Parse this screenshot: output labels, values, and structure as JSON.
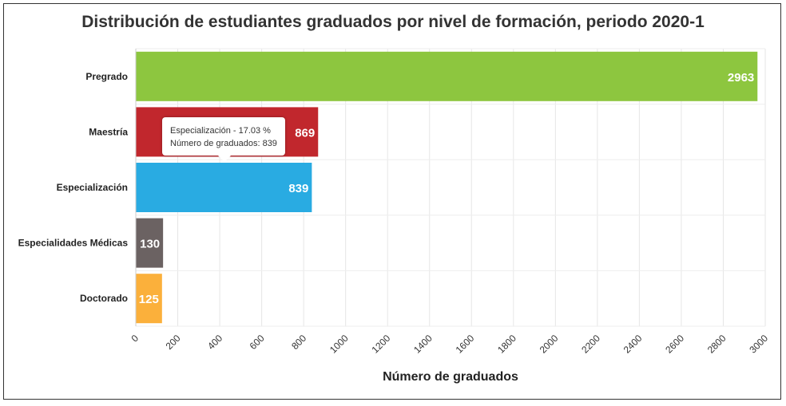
{
  "chart_data": {
    "type": "bar",
    "orientation": "horizontal",
    "title": "Distribución de estudiantes graduados por nivel de formación, periodo 2020-1",
    "xlabel": "Número de graduados",
    "ylabel": "",
    "categories": [
      "Pregrado",
      "Maestría",
      "Especialización",
      "Especialidades Médicas",
      "Doctorado"
    ],
    "values": [
      2963,
      869,
      839,
      130,
      125
    ],
    "colors": [
      "#8dc63f",
      "#c1272d",
      "#29abe2",
      "#6b6262",
      "#fbb03b"
    ],
    "xlim": [
      0,
      3000
    ],
    "xticks": [
      "0",
      "200",
      "400",
      "600",
      "800",
      "1000",
      "1200",
      "1400",
      "1600",
      "1800",
      "2000",
      "2200",
      "2400",
      "2600",
      "2800",
      "3000"
    ],
    "grid": true,
    "data_labels": true,
    "tooltip": {
      "line1": "Especialización - 17.03 %",
      "line2": "Número de graduados: 839"
    }
  }
}
